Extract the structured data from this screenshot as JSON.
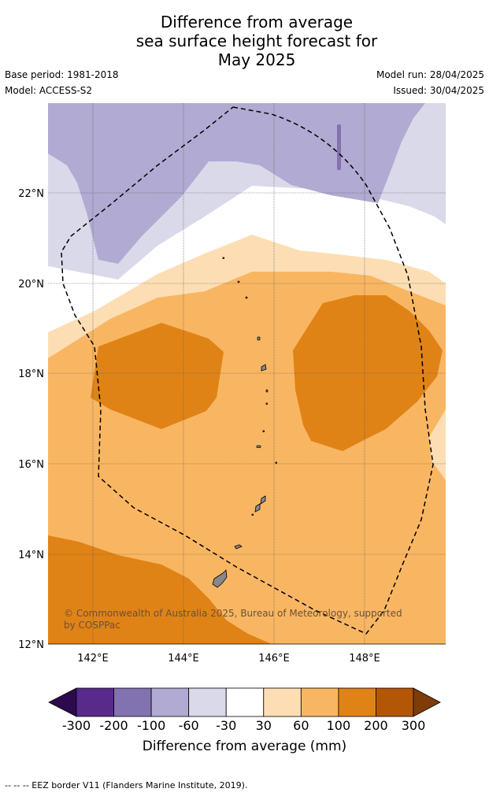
{
  "title_lines": [
    "Difference from average",
    "sea surface height forecast for",
    "May 2025"
  ],
  "base_period": "Base period: 1981-2018",
  "model": "Model: ACCESS-S2",
  "model_run": "Model run: 28/04/2025",
  "issued": "Issued: 30/04/2025",
  "map": {
    "lat_labels": [
      "22°N",
      "20°N",
      "18°N",
      "16°N",
      "14°N",
      "12°N"
    ],
    "lon_labels": [
      "142°E",
      "144°E",
      "146°E",
      "148°E"
    ],
    "copyright": "© Commonwealth of Australia 2025, Bureau of Meteorology, supported by COSPPac"
  },
  "colorbar": {
    "ticks": [
      "-300",
      "-200",
      "-100",
      "-60",
      "-30",
      "30",
      "60",
      "100",
      "200",
      "300"
    ],
    "colors": [
      "#2d0a4e",
      "#582a8c",
      "#8272b0",
      "#b1aad2",
      "#d9d9ea",
      "#ffffff",
      "#fddeb4",
      "#f9b662",
      "#e08317",
      "#b35707",
      "#7f3b08"
    ],
    "label": "Difference from average (mm)"
  },
  "footnote": "--  --  -- EEZ border V11 (Flanders Marine Institute, 2019)."
}
